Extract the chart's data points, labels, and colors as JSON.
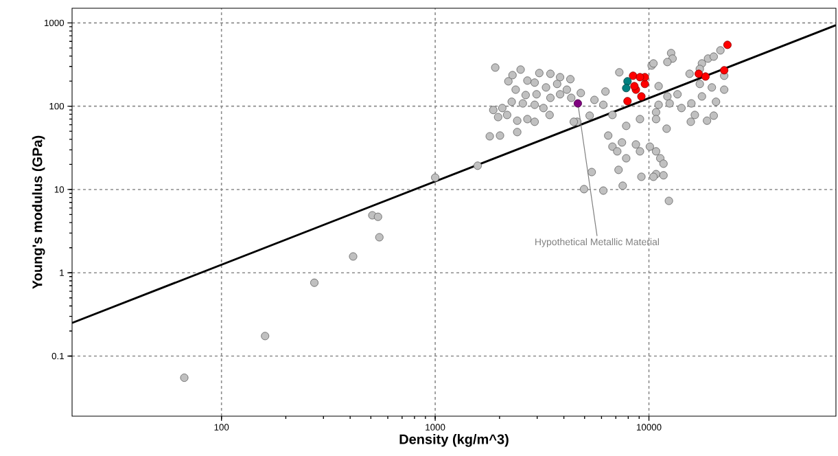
{
  "chart_data": {
    "type": "scatter",
    "xlabel": "Density (kg/m^3)",
    "ylabel": "Young's modulus (GPa)",
    "log": "xy",
    "grid": true,
    "marker": "circle",
    "xlim": [
      20,
      75000
    ],
    "ylim": [
      0.019,
      1500
    ],
    "xticks": [
      100,
      1000,
      10000
    ],
    "yticks": [
      0.1,
      1,
      10,
      100,
      1000
    ],
    "series": [
      {
        "type": "line",
        "color": "#000000",
        "marker": "none",
        "line_style": "solid",
        "x": [
          20,
          75000
        ],
        "values": [
          0.25,
          938
        ]
      },
      {
        "color": "#c0c0c0",
        "x": [
          67,
          160,
          272,
          413,
          548,
          508,
          540,
          1000,
          1580,
          1910,
          2510,
          2200,
          2300,
          2700,
          3070,
          3460,
          3840,
          4290,
          2920,
          3300,
          3720,
          4130,
          2380,
          2650,
          2980,
          3460,
          3840,
          4330,
          4800,
          2280,
          2570,
          2920,
          3210,
          3430,
          1870,
          2060,
          1970,
          2170,
          2420,
          2700,
          2920,
          1800,
          2010,
          2420,
          5560,
          5280,
          4620,
          6260,
          7270,
          10300,
          6750,
          6450,
          6750,
          7830,
          9080,
          7480,
          8690,
          7110,
          7830,
          9080,
          10800,
          5400,
          7210,
          9220,
          4970,
          6120,
          7540,
          4450,
          6120,
          10800,
          12400,
          12700,
          12900,
          10500,
          12200,
          17700,
          18900,
          20100,
          21600,
          17300,
          15500,
          22500,
          22500,
          19700,
          17300,
          11100,
          13600,
          17700,
          20600,
          12200,
          11100,
          12500,
          14200,
          15800,
          16400,
          20100,
          18700,
          15700,
          10800,
          12100,
          10100,
          10800,
          11300,
          11700,
          10500,
          11700
        ],
        "values": [
          0.055,
          0.174,
          0.76,
          1.57,
          2.67,
          4.9,
          4.7,
          13.9,
          19.3,
          291,
          275,
          199,
          236,
          203,
          250,
          245,
          223,
          211,
          192,
          168,
          185,
          158,
          158,
          136,
          139,
          126,
          139,
          126,
          144,
          113,
          108,
          104,
          95,
          78.5,
          90,
          95,
          74,
          78.5,
          67,
          70,
          65,
          43.5,
          44.4,
          48.9,
          119,
          77,
          65,
          150,
          255,
          308,
          78.5,
          44.4,
          32.7,
          58,
          70,
          36.7,
          34.7,
          28.7,
          23.7,
          28.7,
          84.7,
          16.2,
          17.2,
          14.2,
          10.1,
          9.7,
          11.1,
          65,
          104,
          15.3,
          7.3,
          434,
          373,
          326,
          339,
          326,
          373,
          394,
          468,
          280,
          245,
          232,
          158,
          168,
          185,
          174,
          139,
          131,
          113,
          131,
          104,
          108,
          95,
          108,
          78.5,
          77,
          67,
          65,
          70,
          53.7,
          32.7,
          28.7,
          23.7,
          20.4,
          14.2,
          14.8
        ]
      },
      {
        "color": "#ff0000",
        "x": [
          23300,
          17100,
          18400,
          22500,
          8690,
          9220,
          9570,
          9570,
          8430,
          9080,
          8550,
          7940
        ],
        "values": [
          545,
          245,
          227,
          270,
          158,
          131,
          185,
          223,
          232,
          223,
          174,
          115
        ]
      },
      {
        "color": "#008080",
        "x": [
          7940,
          7830
        ],
        "values": [
          199,
          165
        ]
      },
      {
        "color": "#800080",
        "x": [
          4650
        ],
        "values": [
          108
        ]
      }
    ],
    "annotations": [
      {
        "text": "Hypothetical Metallic Material",
        "x": 4650,
        "y": 108
      }
    ]
  }
}
